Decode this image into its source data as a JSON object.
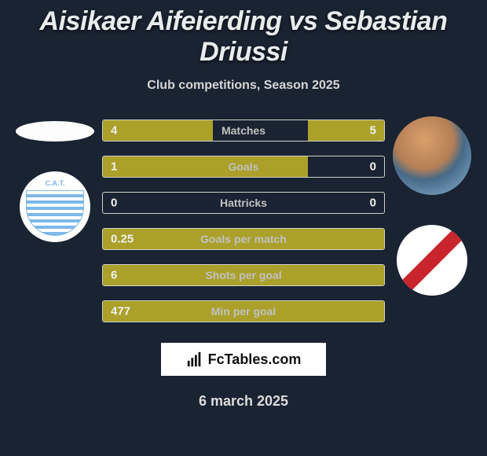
{
  "title": "Aisikaer Aifeierding vs Sebastian Driussi",
  "subtitle": "Club competitions, Season 2025",
  "date": "6 march 2025",
  "brand": "FcTables.com",
  "stats": [
    {
      "label": "Matches",
      "left_val": "4",
      "right_val": "5",
      "left_pct": 39,
      "right_pct": 27
    },
    {
      "label": "Goals",
      "left_val": "1",
      "right_val": "0",
      "left_pct": 73,
      "right_pct": 0
    },
    {
      "label": "Hattricks",
      "left_val": "0",
      "right_val": "0",
      "left_pct": 0,
      "right_pct": 0
    },
    {
      "label": "Goals per match",
      "left_val": "0.25",
      "right_val": "",
      "left_pct": 100,
      "right_pct": 0
    },
    {
      "label": "Shots per goal",
      "left_val": "6",
      "right_val": "",
      "left_pct": 100,
      "right_pct": 0
    },
    {
      "label": "Min per goal",
      "left_val": "477",
      "right_val": "",
      "left_pct": 100,
      "right_pct": 0
    }
  ],
  "colors": {
    "bg": "#1a2332",
    "bar_fill": "#aaa02a",
    "bar_border": "#d0d2c6",
    "text_primary": "#e8ecec",
    "text_secondary": "#c1c1c1"
  }
}
